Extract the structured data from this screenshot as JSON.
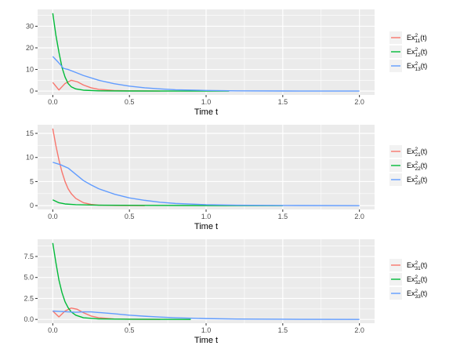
{
  "chart_data": [
    {
      "type": "line",
      "xlabel": "Time t",
      "ylabel": "",
      "xlim": [
        0,
        2
      ],
      "ylim": [
        0,
        36
      ],
      "x_ticks": [
        "0.0",
        "0.5",
        "1.0",
        "1.5",
        "2.0"
      ],
      "y_ticks": [
        "0",
        "10",
        "20",
        "30"
      ],
      "grid": true,
      "legend_position": "right",
      "series": [
        {
          "name": "Ex₁₁²(t)",
          "base": "Ex",
          "sup": "2",
          "sub": "11",
          "suffix": "(t)",
          "color": "#F8766D",
          "points": [
            [
              0,
              4
            ],
            [
              0.04,
              0.5
            ],
            [
              0.08,
              3.5
            ],
            [
              0.12,
              5
            ],
            [
              0.16,
              4.3
            ],
            [
              0.2,
              2.8
            ],
            [
              0.25,
              1.5
            ],
            [
              0.3,
              0.8
            ],
            [
              0.4,
              0.3
            ],
            [
              0.5,
              0.1
            ],
            [
              0.6,
              0.05
            ],
            [
              0.7,
              0
            ]
          ]
        },
        {
          "name": "Ex₁₂²(t)",
          "base": "Ex",
          "sup": "2",
          "sub": "12",
          "suffix": "(t)",
          "color": "#00BA38",
          "points": [
            [
              0,
              36
            ],
            [
              0.02,
              26
            ],
            [
              0.04,
              18
            ],
            [
              0.06,
              11
            ],
            [
              0.08,
              6.5
            ],
            [
              0.1,
              3.5
            ],
            [
              0.12,
              2
            ],
            [
              0.15,
              1
            ],
            [
              0.2,
              0.4
            ],
            [
              0.3,
              0.1
            ],
            [
              0.5,
              0.03
            ],
            [
              0.8,
              0.01
            ],
            [
              1.15,
              0
            ]
          ]
        },
        {
          "name": "Ex₁₃²(t)",
          "base": "Ex",
          "sup": "2",
          "sub": "13",
          "suffix": "(t)",
          "color": "#619CFF",
          "points": [
            [
              0,
              16
            ],
            [
              0.04,
              13
            ],
            [
              0.07,
              10.5
            ],
            [
              0.1,
              10
            ],
            [
              0.15,
              8.6
            ],
            [
              0.2,
              7.2
            ],
            [
              0.3,
              5
            ],
            [
              0.4,
              3.4
            ],
            [
              0.5,
              2.3
            ],
            [
              0.6,
              1.5
            ],
            [
              0.7,
              1
            ],
            [
              0.8,
              0.6
            ],
            [
              1.0,
              0.3
            ],
            [
              1.2,
              0.1
            ],
            [
              1.5,
              0.03
            ],
            [
              2.0,
              0
            ]
          ]
        }
      ]
    },
    {
      "type": "line",
      "xlabel": "Time t",
      "ylabel": "",
      "xlim": [
        0,
        2
      ],
      "ylim": [
        0,
        16
      ],
      "x_ticks": [
        "0.0",
        "0.5",
        "1.0",
        "1.5",
        "2.0"
      ],
      "y_ticks": [
        "0",
        "5",
        "10",
        "15"
      ],
      "grid": true,
      "legend_position": "right",
      "series": [
        {
          "name": "Ex₂₁²(t)",
          "base": "Ex",
          "sup": "2",
          "sub": "21",
          "suffix": "(t)",
          "color": "#F8766D",
          "points": [
            [
              0,
              16
            ],
            [
              0.02,
              12.5
            ],
            [
              0.04,
              9.5
            ],
            [
              0.06,
              7
            ],
            [
              0.08,
              5
            ],
            [
              0.1,
              3.5
            ],
            [
              0.12,
              2.5
            ],
            [
              0.15,
              1.5
            ],
            [
              0.2,
              0.6
            ],
            [
              0.25,
              0.25
            ],
            [
              0.3,
              0.1
            ],
            [
              0.4,
              0.03
            ],
            [
              0.6,
              0
            ]
          ]
        },
        {
          "name": "Ex₂₂²(t)",
          "base": "Ex",
          "sup": "2",
          "sub": "22",
          "suffix": "(t)",
          "color": "#00BA38",
          "points": [
            [
              0,
              1.2
            ],
            [
              0.04,
              0.6
            ],
            [
              0.08,
              0.35
            ],
            [
              0.15,
              0.2
            ],
            [
              0.3,
              0.1
            ],
            [
              0.6,
              0.05
            ],
            [
              1.0,
              0.02
            ],
            [
              1.5,
              0
            ]
          ]
        },
        {
          "name": "Ex₂₃²(t)",
          "base": "Ex",
          "sup": "2",
          "sub": "23",
          "suffix": "(t)",
          "color": "#619CFF",
          "points": [
            [
              0,
              9
            ],
            [
              0.05,
              8.5
            ],
            [
              0.1,
              7.8
            ],
            [
              0.15,
              6.5
            ],
            [
              0.2,
              5.2
            ],
            [
              0.25,
              4.3
            ],
            [
              0.3,
              3.5
            ],
            [
              0.4,
              2.4
            ],
            [
              0.5,
              1.6
            ],
            [
              0.6,
              1.1
            ],
            [
              0.7,
              0.7
            ],
            [
              0.8,
              0.45
            ],
            [
              1.0,
              0.2
            ],
            [
              1.2,
              0.1
            ],
            [
              1.5,
              0.03
            ],
            [
              2.0,
              0
            ]
          ]
        }
      ]
    },
    {
      "type": "line",
      "xlabel": "Time t",
      "ylabel": "",
      "xlim": [
        0,
        2
      ],
      "ylim": [
        0,
        9.1
      ],
      "x_ticks": [
        "0.0",
        "0.5",
        "1.0",
        "1.5",
        "2.0"
      ],
      "y_ticks": [
        "0.0",
        "2.5",
        "5.0",
        "7.5"
      ],
      "grid": true,
      "legend_position": "right",
      "series": [
        {
          "name": "Ex₃₁²(t)",
          "base": "Ex",
          "sup": "2",
          "sub": "31",
          "suffix": "(t)",
          "color": "#F8766D",
          "points": [
            [
              0,
              1
            ],
            [
              0.04,
              0.3
            ],
            [
              0.08,
              1
            ],
            [
              0.12,
              1.35
            ],
            [
              0.16,
              1.2
            ],
            [
              0.2,
              0.8
            ],
            [
              0.25,
              0.4
            ],
            [
              0.3,
              0.2
            ],
            [
              0.4,
              0.06
            ],
            [
              0.5,
              0.02
            ],
            [
              0.7,
              0
            ]
          ]
        },
        {
          "name": "Ex₃₂²(t)",
          "base": "Ex",
          "sup": "2",
          "sub": "32",
          "suffix": "(t)",
          "color": "#00BA38",
          "points": [
            [
              0,
              9.1
            ],
            [
              0.02,
              6.8
            ],
            [
              0.04,
              4.7
            ],
            [
              0.06,
              3.2
            ],
            [
              0.08,
              2.1
            ],
            [
              0.1,
              1.4
            ],
            [
              0.12,
              0.9
            ],
            [
              0.15,
              0.5
            ],
            [
              0.2,
              0.2
            ],
            [
              0.3,
              0.06
            ],
            [
              0.5,
              0.02
            ],
            [
              0.9,
              0
            ]
          ]
        },
        {
          "name": "Ex₃₃²(t)",
          "base": "Ex",
          "sup": "2",
          "sub": "33",
          "suffix": "(t)",
          "color": "#619CFF",
          "points": [
            [
              0,
              1
            ],
            [
              0.05,
              0.95
            ],
            [
              0.1,
              0.9
            ],
            [
              0.15,
              0.85
            ],
            [
              0.2,
              0.9
            ],
            [
              0.25,
              0.9
            ],
            [
              0.3,
              0.82
            ],
            [
              0.4,
              0.68
            ],
            [
              0.5,
              0.5
            ],
            [
              0.6,
              0.38
            ],
            [
              0.7,
              0.28
            ],
            [
              0.8,
              0.2
            ],
            [
              1.0,
              0.1
            ],
            [
              1.2,
              0.05
            ],
            [
              1.5,
              0.02
            ],
            [
              2.0,
              0
            ]
          ]
        }
      ]
    }
  ]
}
